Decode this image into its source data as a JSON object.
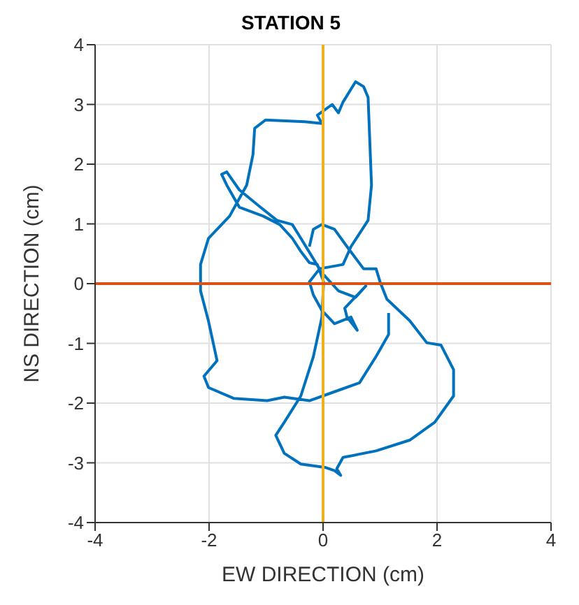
{
  "chart_data": {
    "type": "line",
    "title": "STATION 5",
    "xlabel": "EW DIRECTION (cm)",
    "ylabel": "NS DIRECTION (cm)",
    "xlim": [
      -4,
      4
    ],
    "xticks": [
      -4,
      -2,
      0,
      2,
      4
    ],
    "ylim": [
      -4,
      4
    ],
    "yticks": [
      -4,
      -3,
      -2,
      -1,
      0,
      1,
      2,
      3,
      4
    ],
    "grid": true,
    "marker": "none",
    "line_style": "solid",
    "ref_lines": [
      {
        "axis": "x",
        "value": 0,
        "color": "#edb120"
      },
      {
        "axis": "y",
        "value": 0,
        "color": "#d95319"
      }
    ],
    "series": [
      {
        "color": "#0072bd",
        "x": [
          -0.24,
          -0.17,
          -0.02,
          0.2,
          0.42,
          0.71,
          0.93,
          1.0,
          1.12,
          1.52,
          1.82,
          2.07,
          2.29,
          2.29,
          1.96,
          1.52,
          0.93,
          0.35,
          0.24,
          0.31,
          0.2,
          0.05,
          -0.39,
          -0.68,
          -0.83,
          -0.68,
          -0.39,
          -0.17,
          -0.02,
          0.01,
          -0.1,
          -0.24,
          -0.39,
          -0.54,
          -0.76,
          -1.05,
          -1.47,
          -1.69,
          -1.78,
          -1.69,
          -1.47,
          -1.1,
          -0.81,
          -0.54,
          -0.39,
          -0.02,
          0.27,
          0.57,
          0.75,
          0.38,
          0.42,
          0.6,
          0.49,
          0.2,
          -0.02,
          -0.17,
          -0.24,
          -0.06,
          0.35,
          0.49,
          0.79,
          0.85,
          0.79,
          0.71,
          0.57,
          0.35,
          0.27,
          0.16,
          -0.1,
          -0.02,
          -0.32,
          -1.01,
          -1.2,
          -1.23,
          -1.34,
          -1.64,
          -2.01,
          -2.15,
          -2.15,
          -2.01,
          -1.86,
          -2.09,
          -2.01,
          -1.57,
          -0.98,
          -0.68,
          -0.24,
          0.2,
          0.64,
          0.93,
          1.15,
          1.15
        ],
        "values": [
          0.62,
          0.91,
          0.99,
          0.91,
          0.62,
          0.25,
          0.25,
          0.03,
          -0.26,
          -0.62,
          -0.99,
          -1.03,
          -1.44,
          -1.88,
          -2.32,
          -2.62,
          -2.8,
          -2.91,
          -3.1,
          -3.21,
          -3.13,
          -3.08,
          -3.02,
          -2.84,
          -2.54,
          -2.32,
          -1.88,
          -1.22,
          -0.56,
          0.03,
          0.32,
          0.35,
          0.54,
          0.76,
          0.99,
          1.13,
          1.28,
          1.65,
          1.83,
          1.87,
          1.57,
          1.28,
          1.06,
          0.99,
          0.76,
          0.18,
          -0.12,
          -0.23,
          -0.04,
          -0.41,
          -0.56,
          -0.78,
          -0.56,
          -0.67,
          -0.45,
          -0.19,
          0.03,
          0.25,
          0.32,
          0.62,
          1.06,
          1.65,
          3.12,
          3.3,
          3.38,
          3.04,
          2.86,
          3.0,
          2.82,
          2.68,
          2.71,
          2.74,
          2.6,
          2.16,
          1.65,
          1.13,
          0.76,
          0.32,
          -0.12,
          -0.63,
          -1.29,
          -1.55,
          -1.74,
          -1.92,
          -1.96,
          -1.9,
          -1.96,
          -1.81,
          -1.66,
          -1.22,
          -0.85,
          -0.49
        ]
      }
    ]
  }
}
